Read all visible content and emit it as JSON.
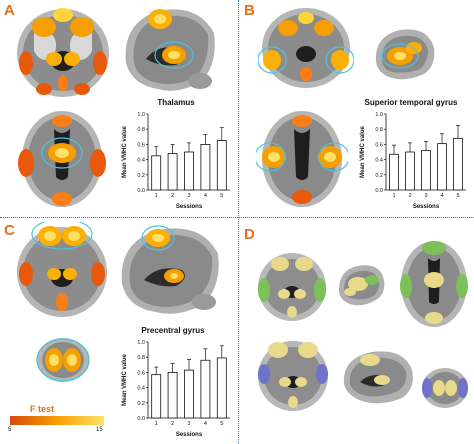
{
  "panels": {
    "a": {
      "label": "A",
      "chart_title": "Thalamus"
    },
    "b": {
      "label": "B",
      "chart_title": "Superior temporal gyrus"
    },
    "c": {
      "label": "C",
      "chart_title": "Precentral gyrus"
    },
    "d": {
      "label": "D"
    }
  },
  "colorbar": {
    "title": "F test",
    "min": "5",
    "max": "15",
    "colors": [
      "#d9480f",
      "#f59f00",
      "#ffe066"
    ]
  },
  "colors": {
    "divider": "#2a7fc0",
    "label": "#e2711d",
    "outline": "#4fc3d9"
  },
  "chart_data": [
    {
      "type": "bar",
      "title": "Thalamus",
      "xlabel": "Sessions",
      "ylabel": "Mean VMHC value",
      "categories": [
        "1",
        "2",
        "3",
        "4",
        "5"
      ],
      "values": [
        0.45,
        0.48,
        0.5,
        0.6,
        0.65
      ],
      "errors": [
        0.12,
        0.12,
        0.12,
        0.13,
        0.17
      ],
      "ylim": [
        0.0,
        1.0
      ],
      "yticks": [
        "0.0",
        "0.2",
        "0.4",
        "0.6",
        "0.8",
        "1.0"
      ]
    },
    {
      "type": "bar",
      "title": "Superior temporal gyrus",
      "xlabel": "Sessions",
      "ylabel": "Mean VMHC value",
      "categories": [
        "1",
        "2",
        "3",
        "4",
        "5"
      ],
      "values": [
        0.47,
        0.5,
        0.52,
        0.61,
        0.68
      ],
      "errors": [
        0.12,
        0.12,
        0.12,
        0.13,
        0.17
      ],
      "ylim": [
        0.0,
        1.0
      ],
      "yticks": [
        "0.0",
        "0.2",
        "0.4",
        "0.6",
        "0.8",
        "1.0"
      ]
    },
    {
      "type": "bar",
      "title": "Precentral gyrus",
      "xlabel": "Sessions",
      "ylabel": "Mean VMHC value",
      "categories": [
        "1",
        "2",
        "3",
        "4",
        "5"
      ],
      "values": [
        0.57,
        0.6,
        0.63,
        0.76,
        0.79
      ],
      "errors": [
        0.1,
        0.12,
        0.14,
        0.15,
        0.16
      ],
      "ylim": [
        0.0,
        1.0
      ],
      "yticks": [
        "0.0",
        "0.2",
        "0.4",
        "0.6",
        "0.8",
        "1.0"
      ]
    }
  ]
}
